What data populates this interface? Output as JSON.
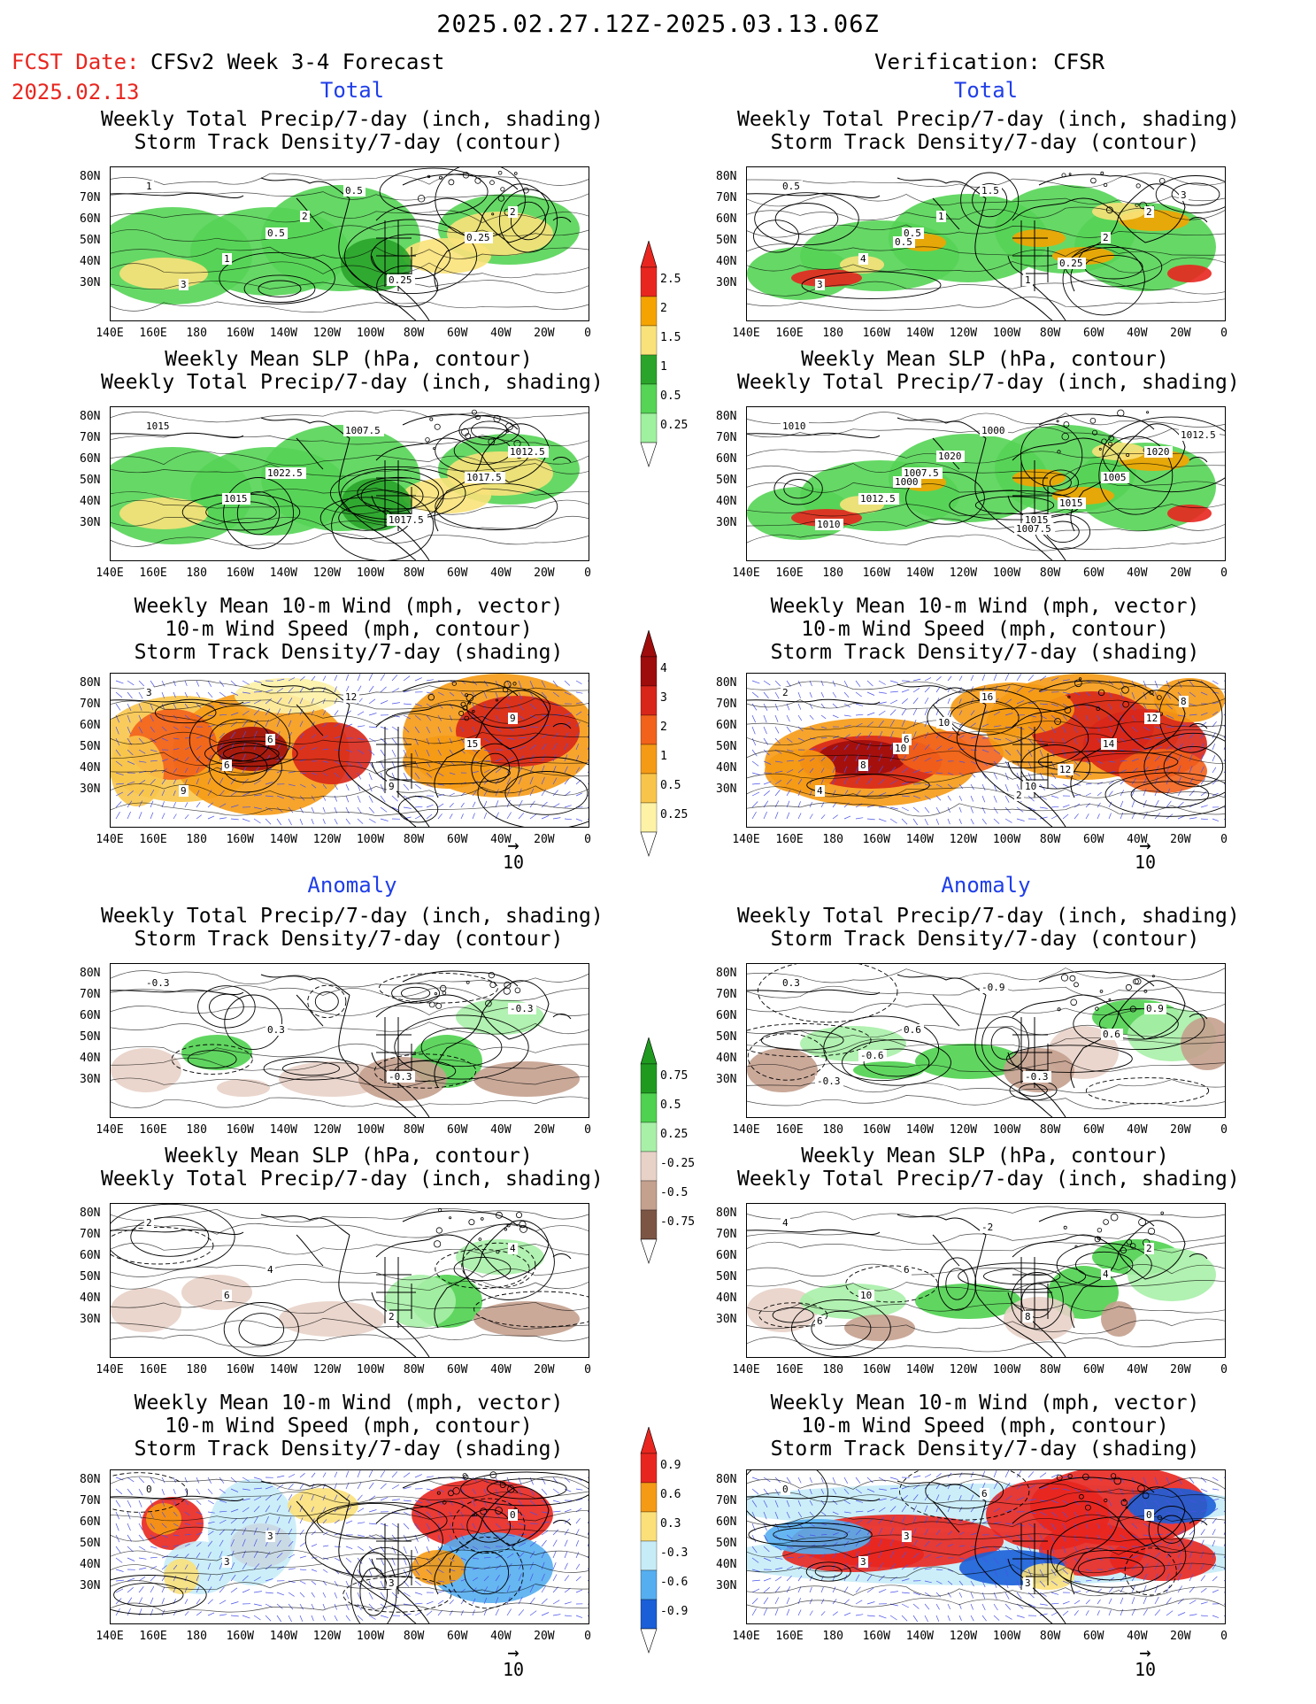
{
  "header": {
    "title": "2025.02.27.12Z-2025.03.13.06Z",
    "fcst_label": "FCST Date:",
    "fcst_date": "2025.02.13",
    "left_model": "CFSv2 Week 3-4 Forecast",
    "right_model": "Verification: CFSR"
  },
  "sections": {
    "total": "Total",
    "anomaly": "Anomaly"
  },
  "panel_titles": {
    "precip_storm": [
      "Weekly Total Precip/7-day (inch, shading)",
      "Storm Track Density/7-day (contour)"
    ],
    "slp_precip": [
      "Weekly Mean SLP (hPa, contour)",
      "Weekly Total Precip/7-day (inch, shading)"
    ],
    "wind_storm": [
      "Weekly Mean 10-m Wind (mph, vector)",
      "10-m Wind Speed (mph, contour)",
      "Storm Track Density/7-day (shading)"
    ]
  },
  "axes": {
    "lat_labels": [
      "80N",
      "70N",
      "60N",
      "50N",
      "40N",
      "30N"
    ],
    "lon_labels": [
      "140E",
      "160E",
      "180",
      "160W",
      "140W",
      "120W",
      "100W",
      "80W",
      "60W",
      "40W",
      "20W",
      "0"
    ]
  },
  "vector_ref": "10",
  "colorbars": {
    "precip_total": {
      "labels": [
        "2.5",
        "2",
        "1.5",
        "1",
        "0.5",
        "0.25"
      ],
      "colors": [
        "#e8261f",
        "#f5a300",
        "#f9e27a",
        "#2aa42a",
        "#55d455",
        "#9ff09f"
      ]
    },
    "storm_total": {
      "labels": [
        "4",
        "3",
        "2",
        "1",
        "0.5",
        "0.25"
      ],
      "colors": [
        "#9e0c0c",
        "#d8261a",
        "#f2621b",
        "#f59a14",
        "#f8c54a",
        "#fdf2a6"
      ]
    },
    "precip_anom": {
      "labels": [
        "0.75",
        "0.5",
        "0.25",
        "-0.25",
        "-0.5",
        "-0.75"
      ],
      "colors": [
        "#1f9a1f",
        "#4fd24f",
        "#a8f0a8",
        "#e8d2c8",
        "#c4a08e",
        "#7c5544"
      ]
    },
    "storm_anom": {
      "labels": [
        "0.9",
        "0.6",
        "0.3",
        "-0.3",
        "-0.6",
        "-0.9"
      ],
      "colors": [
        "#e8261f",
        "#f59a14",
        "#fbe07a",
        "#c6ecf8",
        "#55aef0",
        "#1a5fd8"
      ]
    }
  },
  "map_labels": {
    "l1": [
      "1",
      "0.5",
      "0.25",
      "2",
      "1",
      "0.5",
      "0.25",
      "3",
      "2"
    ],
    "r1": [
      "0.5",
      "0.5",
      "1",
      "2",
      "4",
      "1.5",
      "2",
      "3",
      "1",
      "0.25",
      "3",
      "0.5"
    ],
    "l2": [
      "1015",
      "1022.5",
      "1017.5",
      "1012.5",
      "1015",
      "1007.5",
      "1017.5"
    ],
    "r2": [
      "1010",
      "1007.5",
      "1015",
      "1020",
      "1012.5",
      "1000",
      "1005",
      "1010",
      "1020",
      "1015",
      "1012.5",
      "1000",
      "1007.5"
    ],
    "l3": [
      "3",
      "6",
      "9",
      "9",
      "6",
      "12",
      "15",
      "9"
    ],
    "r3": [
      "2",
      "6",
      "10",
      "12",
      "8",
      "16",
      "14",
      "4",
      "10",
      "12",
      "8",
      "10",
      "2"
    ],
    "l4": [
      "-0.3",
      "0.3",
      "-0.3",
      "-0.3"
    ],
    "r4": [
      "0.3",
      "0.6",
      "-0.3",
      "0.9",
      "-0.6",
      "-0.9",
      "0.6",
      "-0.3"
    ],
    "l5": [
      "2",
      "4",
      "2",
      "4",
      "6"
    ],
    "r5": [
      "4",
      "6",
      "8",
      "2",
      "10",
      "-2",
      "4",
      "6"
    ],
    "l6": [
      "0",
      "3",
      "3",
      "0",
      "3"
    ],
    "r6": [
      "0",
      "3",
      "3",
      "0",
      "3",
      "6"
    ]
  }
}
